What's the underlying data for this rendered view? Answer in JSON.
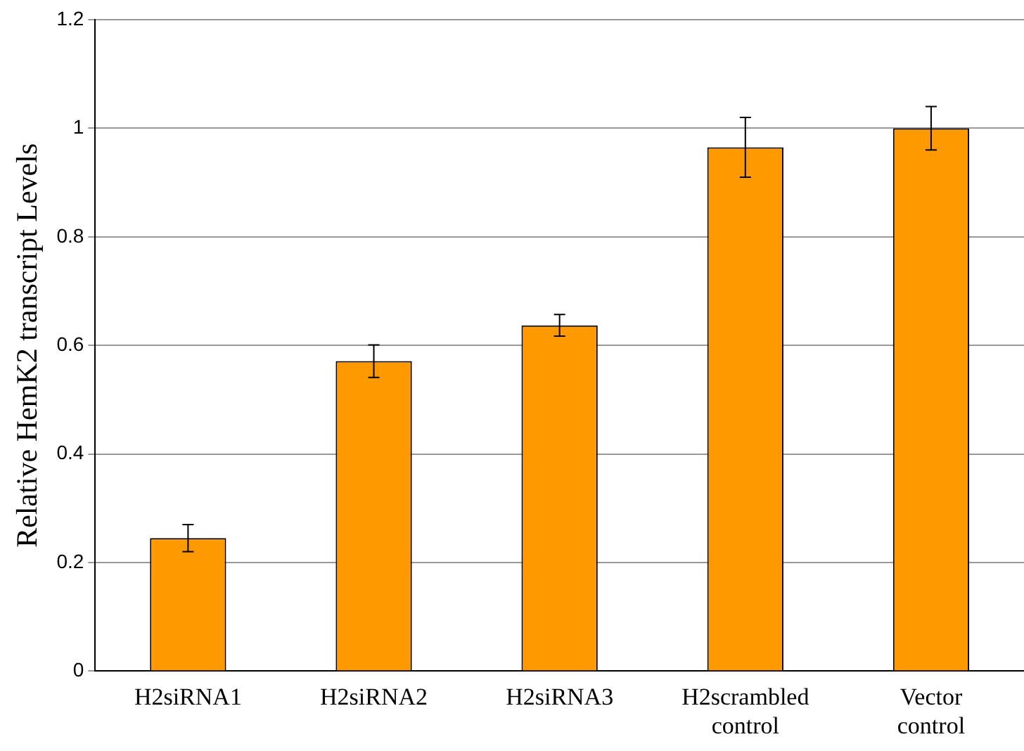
{
  "chart_data": {
    "type": "bar",
    "ylabel": "Relative HemK2 transcript Levels",
    "categories": [
      "H2siRNA1",
      "H2siRNA2",
      "H2siRNA3",
      "H2scrambled control",
      "Vector control"
    ],
    "values": [
      0.245,
      0.571,
      0.637,
      0.965,
      1.0
    ],
    "errors": [
      0.025,
      0.03,
      0.02,
      0.055,
      0.04
    ],
    "color": "#ff9900",
    "ylim": [
      0,
      1.2
    ],
    "yticks": [
      0,
      0.2,
      0.4,
      0.6,
      0.8,
      1,
      1.2
    ],
    "grid": "y",
    "legend": false
  }
}
